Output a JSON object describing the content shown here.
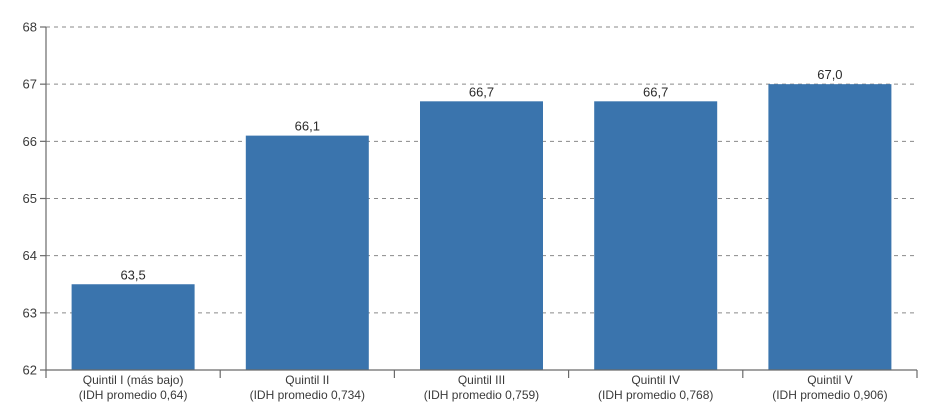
{
  "chart_data": {
    "type": "bar",
    "title": "",
    "xlabel": "",
    "ylabel": "",
    "ylim": [
      62,
      68
    ],
    "yticks": [
      62,
      63,
      64,
      65,
      66,
      67,
      68
    ],
    "grid": true,
    "legend": "none",
    "bar_color": "#3a74ad",
    "categories": [
      {
        "line1": "Quintil I (más bajo)",
        "line2": "(IDH promedio 0,64)"
      },
      {
        "line1": "Quintil II",
        "line2": "(IDH promedio 0,734)"
      },
      {
        "line1": "Quintil III",
        "line2": "(IDH promedio 0,759)"
      },
      {
        "line1": "Quintil IV",
        "line2": "(IDH promedio 0,768)"
      },
      {
        "line1": "Quintil V",
        "line2": "(IDH promedio 0,906)"
      }
    ],
    "values": [
      63.5,
      66.1,
      66.7,
      66.7,
      67.0
    ],
    "value_labels": [
      "63,5",
      "66,1",
      "66,7",
      "66,7",
      "67,0"
    ]
  }
}
